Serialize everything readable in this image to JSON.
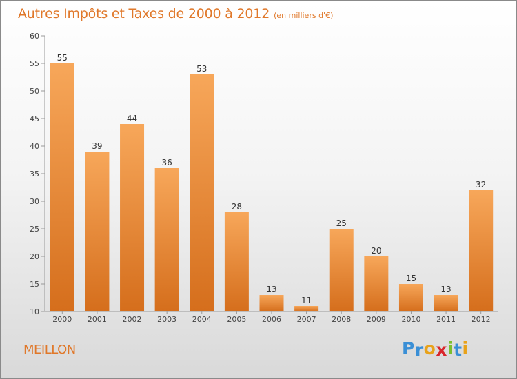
{
  "title": "Autres Impôts et Taxes de 2000 à 2012",
  "subtitle": "(en milliers d'€)",
  "commune": "MEILLON",
  "logo": {
    "letters": [
      "P",
      "r",
      "o",
      "x",
      "i",
      "t",
      "i"
    ],
    "colors": [
      "#3a8fd6",
      "#3a8fd6",
      "#e8a21a",
      "#d9262c",
      "#7cbf2e",
      "#3a8fd6",
      "#e8a21a"
    ]
  },
  "colors": {
    "accent": "#e0782a",
    "bar_top": "#f7a75a",
    "bar_bottom": "#d56e1c"
  },
  "chart_data": {
    "type": "bar",
    "categories": [
      "2000",
      "2001",
      "2002",
      "2003",
      "2004",
      "2005",
      "2006",
      "2007",
      "2008",
      "2009",
      "2010",
      "2011",
      "2012"
    ],
    "values": [
      55,
      39,
      44,
      36,
      53,
      28,
      13,
      11,
      25,
      20,
      15,
      13,
      32
    ],
    "ylim": [
      10,
      60
    ],
    "yticks": [
      10,
      15,
      20,
      25,
      30,
      35,
      40,
      45,
      50,
      55,
      60
    ],
    "grid": false,
    "legend": "none"
  }
}
